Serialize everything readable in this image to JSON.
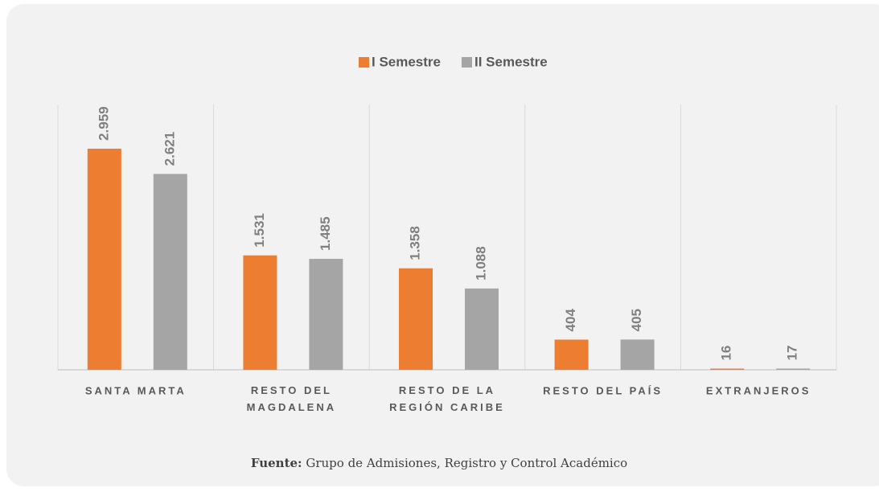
{
  "chart_data": {
    "type": "bar",
    "categories": [
      "SANTA MARTA",
      "RESTO DEL MAGDALENA",
      "RESTO DE LA REGIÓN CARIBE",
      "RESTO DEL PAÍS",
      "EXTRANJEROS"
    ],
    "series": [
      {
        "name": "I Semestre",
        "color": "#ed7d31",
        "values": [
          2959,
          1531,
          1358,
          404,
          16
        ],
        "value_labels": [
          "2.959",
          "1.531",
          "1.358",
          "404",
          "16"
        ]
      },
      {
        "name": "II Semestre",
        "color": "#a5a5a5",
        "values": [
          2621,
          1485,
          1088,
          405,
          17
        ],
        "value_labels": [
          "2.621",
          "1.485",
          "1.088",
          "405",
          "17"
        ]
      }
    ],
    "ylim": [
      0,
      3550
    ],
    "legend": "top",
    "source": {
      "label": "Fuente:",
      "text": "Grupo de Admisiones, Registro y Control Académico"
    }
  }
}
